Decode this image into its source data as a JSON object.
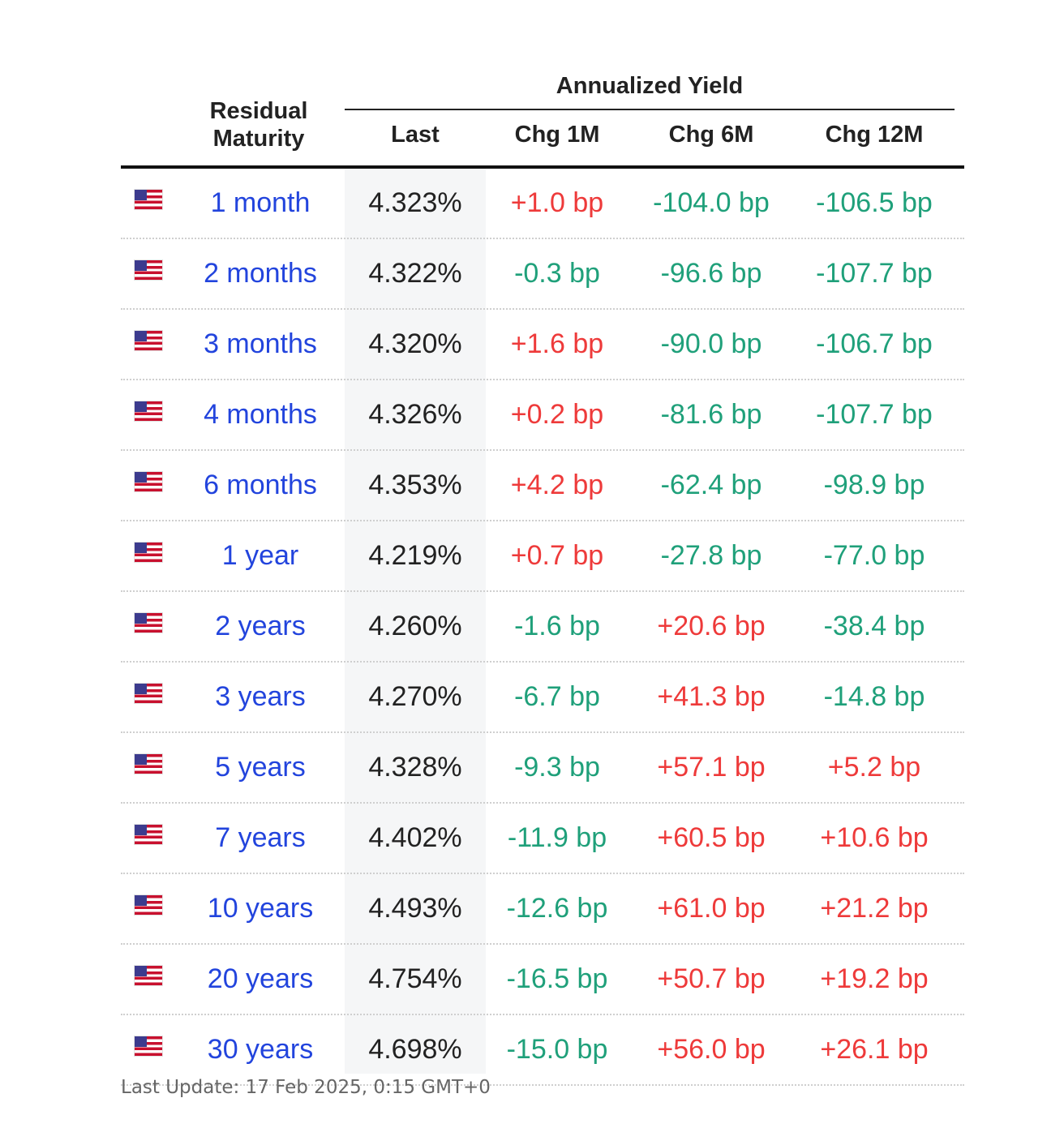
{
  "table": {
    "group_title": "Annualized Yield",
    "headers": {
      "maturity": "Residual Maturity",
      "last": "Last",
      "chg_1m": "Chg 1M",
      "chg_6m": "Chg 6M",
      "chg_12m": "Chg 12M"
    },
    "rows": [
      {
        "maturity": "1 month",
        "last": "4.323%",
        "chg_1m": "+1.0 bp",
        "chg_6m": "-104.0 bp",
        "chg_12m": "-106.5 bp"
      },
      {
        "maturity": "2 months",
        "last": "4.322%",
        "chg_1m": "-0.3 bp",
        "chg_6m": "-96.6 bp",
        "chg_12m": "-107.7 bp"
      },
      {
        "maturity": "3 months",
        "last": "4.320%",
        "chg_1m": "+1.6 bp",
        "chg_6m": "-90.0 bp",
        "chg_12m": "-106.7 bp"
      },
      {
        "maturity": "4 months",
        "last": "4.326%",
        "chg_1m": "+0.2 bp",
        "chg_6m": "-81.6 bp",
        "chg_12m": "-107.7 bp"
      },
      {
        "maturity": "6 months",
        "last": "4.353%",
        "chg_1m": "+4.2 bp",
        "chg_6m": "-62.4 bp",
        "chg_12m": "-98.9 bp"
      },
      {
        "maturity": "1 year",
        "last": "4.219%",
        "chg_1m": "+0.7 bp",
        "chg_6m": "-27.8 bp",
        "chg_12m": "-77.0 bp"
      },
      {
        "maturity": "2 years",
        "last": "4.260%",
        "chg_1m": "-1.6 bp",
        "chg_6m": "+20.6 bp",
        "chg_12m": "-38.4 bp"
      },
      {
        "maturity": "3 years",
        "last": "4.270%",
        "chg_1m": "-6.7 bp",
        "chg_6m": "+41.3 bp",
        "chg_12m": "-14.8 bp"
      },
      {
        "maturity": "5 years",
        "last": "4.328%",
        "chg_1m": "-9.3 bp",
        "chg_6m": "+57.1 bp",
        "chg_12m": "+5.2 bp"
      },
      {
        "maturity": "7 years",
        "last": "4.402%",
        "chg_1m": "-11.9 bp",
        "chg_6m": "+60.5 bp",
        "chg_12m": "+10.6 bp"
      },
      {
        "maturity": "10 years",
        "last": "4.493%",
        "chg_1m": "-12.6 bp",
        "chg_6m": "+61.0 bp",
        "chg_12m": "+21.2 bp"
      },
      {
        "maturity": "20 years",
        "last": "4.754%",
        "chg_1m": "-16.5 bp",
        "chg_6m": "+50.7 bp",
        "chg_12m": "+19.2 bp"
      },
      {
        "maturity": "30 years",
        "last": "4.698%",
        "chg_1m": "-15.0 bp",
        "chg_6m": "+56.0 bp",
        "chg_12m": "+26.1 bp"
      }
    ]
  },
  "footer": {
    "last_update": "Last Update: 17 Feb 2025, 0:15 GMT+0"
  },
  "colors": {
    "link": "#2244dd",
    "positive": "#ee3a3a",
    "negative": "#1fa07a"
  },
  "icons": {
    "flag": "us-flag-icon"
  }
}
